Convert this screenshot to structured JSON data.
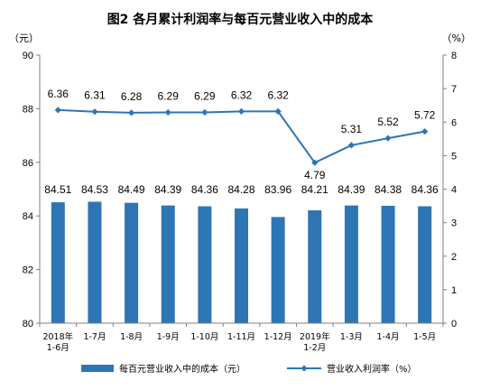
{
  "chart_data": {
    "type": "bar",
    "title": "图2  各月累计利润率与每百元营业收入中的成本",
    "left_unit": "（元）",
    "right_unit": "（%）",
    "categories": [
      [
        "2018年",
        "1-6月"
      ],
      [
        "1-7月"
      ],
      [
        "1-8月"
      ],
      [
        "1-9月"
      ],
      [
        "1-10月"
      ],
      [
        "1-11月"
      ],
      [
        "1-12月"
      ],
      [
        "2019年",
        "1-2月"
      ],
      [
        "1-3月"
      ],
      [
        "1-4月"
      ],
      [
        "1-5月"
      ]
    ],
    "series": [
      {
        "name": "每百元营业收入中的成本（元）",
        "type": "bar",
        "axis": "left",
        "color": "#2e75b6",
        "values": [
          84.51,
          84.53,
          84.49,
          84.39,
          84.36,
          84.28,
          83.96,
          84.21,
          84.39,
          84.38,
          84.36
        ],
        "labels": [
          "84.51",
          "84.53",
          "84.49",
          "84.39",
          "84.36",
          "84.28",
          "83.96",
          "84.21",
          "84.39",
          "84.38",
          "84.36"
        ]
      },
      {
        "name": "营业收入利润率（%）",
        "type": "line",
        "axis": "right",
        "color": "#2e75b6",
        "values": [
          6.36,
          6.31,
          6.28,
          6.29,
          6.29,
          6.32,
          6.32,
          4.79,
          5.31,
          5.52,
          5.72
        ],
        "labels": [
          "6.36",
          "6.31",
          "6.28",
          "6.29",
          "6.29",
          "6.32",
          "6.32",
          "4.79",
          "5.31",
          "5.52",
          "5.72"
        ]
      }
    ],
    "left_axis": {
      "range": [
        80,
        90
      ],
      "ticks": [
        80,
        82,
        84,
        86,
        88,
        90
      ]
    },
    "right_axis": {
      "range": [
        0,
        8
      ],
      "ticks": [
        0,
        1,
        2,
        3,
        4,
        5,
        6,
        7,
        8
      ]
    },
    "grid": false,
    "legend_position": "bottom"
  }
}
